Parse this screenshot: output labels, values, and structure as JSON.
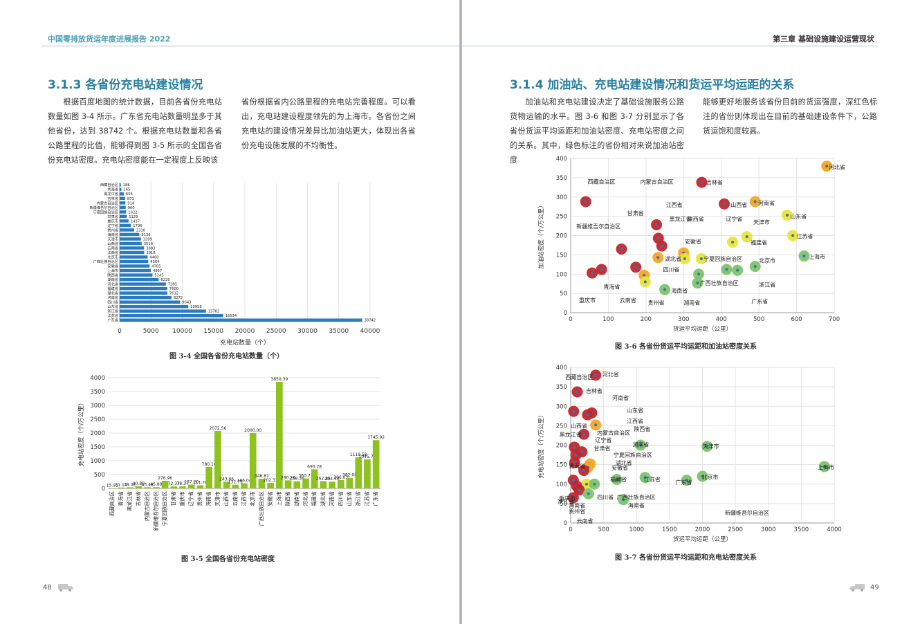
{
  "header": {
    "left_title": "中国零排放货运年度进展报告 2022",
    "right_title": "第三章  基础设施建设运营现状"
  },
  "left": {
    "section_title": "3.1.3 各省份充电站建设情况",
    "para1": "根据百度地图的统计数据，目前各省份充电站数量如图 3-4 所示。广东省充电站数量明显多于其他省份，达到 38742 个。根据充电站数量和各省公路里程的比值，能够得到图 3-5 所示的全国各省份充电站密度。充电站密度能在一定程度上反映该",
    "para2": "省份根据省内公路里程的充电站完善程度。可以看出，充电站建设程度领先的为上海市。各省份之间充电站的建设情况差异比加油站更大，体现出各省份充电设施发展的不均衡性。",
    "fig34_caption": "图 3-4 全国各省份充电站数量（个）",
    "fig35_caption": "图 3-5 全国各省份充电站密度",
    "page_number": "48"
  },
  "right": {
    "section_title": "3.1.4 加油站、充电站建设情况和货运平均运距的关系",
    "para1": "加油站和充电站建设决定了基础设施服务公路货物运输的水平。图 3-6 和图 3-7 分别显示了各省份货运平均运距和加油站密度、充电站密度之间的关系。其中，绿色标注的省份相对来说加油站密度",
    "para2": "能够更好地服务该省份目前的货运强度，深红色标注的省份则体现出在目前的基础建设条件下，公路货运饱和度较高。",
    "fig36_caption": "图 3-6 各省份货运平均运距和加油站密度关系",
    "fig37_caption": "图 3-7 各省份货运平均运距和充电站密度关系",
    "page_number": "49"
  },
  "colors": {
    "bar_blue": "#2a7bbf",
    "bar_green": "#8dc21f",
    "dot_red": "#c1272d",
    "dot_orange": "#f5a623",
    "dot_yellow": "#e8e43a",
    "dot_green": "#7cc36b",
    "header_teal": "#4aa0b6",
    "title_blue": "#2a7fa0"
  },
  "icons": {
    "footer_left": "truck-icon",
    "footer_right": "truck-icon"
  },
  "chart_data": [
    {
      "id": "fig3-4",
      "type": "bar",
      "orientation": "horizontal",
      "xlabel": "充电站数量（个）",
      "xlim": [
        0,
        40000
      ],
      "xticks": [
        "0",
        "5000",
        "10000",
        "15000",
        "20000",
        "25000",
        "30000",
        "35000",
        "40000"
      ],
      "grid": true,
      "categories": [
        "西藏自治区",
        "青海省",
        "黑龙江省",
        "吉林省",
        "内蒙古自治区",
        "新疆维吾尔自治区",
        "宁夏回族自治区",
        "甘肃省",
        "重庆市",
        "辽宁省",
        "贵州省",
        "海南省",
        "天津市",
        "山西省",
        "云南省",
        "江西省",
        "北京市",
        "广西壮族自治区",
        "安徽省",
        "上海市",
        "陕西省",
        "湖南省",
        "河北省",
        "福建省",
        "湖北省",
        "河南省",
        "四川省",
        "山东省",
        "浙江省",
        "江苏省",
        "广东省"
      ],
      "values": [
        188,
        265,
        656,
        871,
        914,
        960,
        1022,
        1129,
        1417,
        1796,
        2310,
        3136,
        3399,
        3516,
        3883,
        3918,
        4460,
        4564,
        4785,
        4967,
        5245,
        6229,
        7385,
        7600,
        7612,
        8272,
        9643,
        10958,
        13782,
        16534,
        38742
      ]
    },
    {
      "id": "fig3-5",
      "type": "bar",
      "ylabel": "充电站密度（个/万公里）",
      "ylim": [
        0,
        4000
      ],
      "yticks": [
        "0",
        "500",
        "1000",
        "1500",
        "2000",
        "2500",
        "3000",
        "3500",
        "4000"
      ],
      "grid": true,
      "categories": [
        "西藏自治区",
        "青海省",
        "黑龙江省",
        "吉林省",
        "内蒙古自治区",
        "新疆维吾尔自治区",
        "宁夏回族自治区",
        "甘肃省",
        "重庆市",
        "辽宁省",
        "贵州省",
        "海南省",
        "天津市",
        "山西省",
        "云南省",
        "江西省",
        "北京市",
        "广西壮族自治区",
        "安徽省",
        "上海市",
        "陕西省",
        "湖南省",
        "河北省",
        "福建省",
        "湖北省",
        "河南省",
        "四川省",
        "山东省",
        "浙江省",
        "江苏省",
        "广东省"
      ],
      "values": [
        15.91,
        31.14,
        39.02,
        80.8,
        43.48,
        45.89,
        276.96,
        72.37,
        78.37,
        137.2,
        111.76,
        780.1,
        2072.56,
        243.66,
        132.75,
        186.04,
        2000.0,
        346.81,
        202.33,
        3850.39,
        290.26,
        258.36,
        360.77,
        690.28,
        262.85,
        244.5,
        306.03,
        382.08,
        1119.58,
        1045.79,
        1745.92
      ],
      "labels": [
        "15.91",
        "31.14",
        "39.02",
        "80.80",
        "43.48",
        "45.89",
        "276.96",
        "72.37",
        "78.37",
        "137.20",
        "111.76",
        "780.10",
        "2072.56",
        "243.66",
        "132.75",
        "186.04",
        "2000.00",
        "346.81",
        "202.33",
        "3850.39",
        "290.26",
        "258.36",
        "360.77",
        "690.28",
        "262.85",
        "244.50",
        "306.03",
        "382.08",
        "1119.58",
        "1045.79",
        "1745.92"
      ]
    },
    {
      "id": "fig3-6",
      "type": "scatter",
      "xlabel": "货运平均运距（公里）",
      "ylabel": "加油站密度（个/万公里）",
      "xlim": [
        0,
        700
      ],
      "ylim": [
        0,
        400
      ],
      "xticks": [
        "0",
        "100",
        "200",
        "300",
        "400",
        "500",
        "600",
        "700"
      ],
      "yticks": [
        "0",
        "50",
        "100",
        "150",
        "200",
        "250",
        "300",
        "350",
        "400"
      ],
      "grid": true,
      "points": [
        {
          "x": 40,
          "y": 288,
          "color": "red"
        },
        {
          "x": 348,
          "y": 338,
          "color": "red"
        },
        {
          "x": 680,
          "y": 380,
          "color": "orange"
        },
        {
          "x": 408,
          "y": 282,
          "color": "red"
        },
        {
          "x": 490,
          "y": 288,
          "color": "orange"
        },
        {
          "x": 575,
          "y": 253,
          "color": "yellow"
        },
        {
          "x": 228,
          "y": 228,
          "color": "red"
        },
        {
          "x": 233,
          "y": 193,
          "color": "red"
        },
        {
          "x": 242,
          "y": 173,
          "color": "red"
        },
        {
          "x": 135,
          "y": 165,
          "color": "red"
        },
        {
          "x": 468,
          "y": 197,
          "color": "yellow"
        },
        {
          "x": 430,
          "y": 183,
          "color": "yellow"
        },
        {
          "x": 590,
          "y": 200,
          "color": "yellow"
        },
        {
          "x": 300,
          "y": 155,
          "color": "orange"
        },
        {
          "x": 232,
          "y": 143,
          "color": "orange"
        },
        {
          "x": 303,
          "y": 140,
          "color": "yellow"
        },
        {
          "x": 347,
          "y": 140,
          "color": "yellow"
        },
        {
          "x": 620,
          "y": 147,
          "color": "green"
        },
        {
          "x": 490,
          "y": 120,
          "color": "green"
        },
        {
          "x": 173,
          "y": 118,
          "color": "red"
        },
        {
          "x": 82,
          "y": 112,
          "color": "red"
        },
        {
          "x": 57,
          "y": 103,
          "color": "red"
        },
        {
          "x": 195,
          "y": 97,
          "color": "orange"
        },
        {
          "x": 414,
          "y": 112,
          "color": "green"
        },
        {
          "x": 443,
          "y": 110,
          "color": "green"
        },
        {
          "x": 340,
          "y": 100,
          "color": "green"
        },
        {
          "x": 198,
          "y": 80,
          "color": "yellow"
        },
        {
          "x": 337,
          "y": 77,
          "color": "green"
        },
        {
          "x": 250,
          "y": 60,
          "color": "green"
        }
      ],
      "labels": [
        {
          "text": "西藏自治区",
          "x": 45,
          "y": 340
        },
        {
          "text": "内蒙古自治区",
          "x": 185,
          "y": 340
        },
        {
          "text": "吉林省",
          "x": 360,
          "y": 338
        },
        {
          "text": "河北省",
          "x": 685,
          "y": 378
        },
        {
          "text": "山西省",
          "x": 425,
          "y": 280
        },
        {
          "text": "河南省",
          "x": 498,
          "y": 284
        },
        {
          "text": "山东省",
          "x": 583,
          "y": 250
        },
        {
          "text": "江西省",
          "x": 253,
          "y": 280
        },
        {
          "text": "甘肃省",
          "x": 150,
          "y": 258
        },
        {
          "text": "黑龙江省",
          "x": 262,
          "y": 243
        },
        {
          "text": "陕西省",
          "x": 310,
          "y": 243
        },
        {
          "text": "辽宁省",
          "x": 412,
          "y": 243
        },
        {
          "text": "天津市",
          "x": 485,
          "y": 235
        },
        {
          "text": "新疆维吾尔自治区",
          "x": 15,
          "y": 224
        },
        {
          "text": "江苏省",
          "x": 600,
          "y": 198
        },
        {
          "text": "安徽省",
          "x": 303,
          "y": 185
        },
        {
          "text": "福建省",
          "x": 478,
          "y": 182
        },
        {
          "text": "湖北省",
          "x": 250,
          "y": 140
        },
        {
          "text": "宁夏回族自治区",
          "x": 353,
          "y": 140
        },
        {
          "text": "北京市",
          "x": 500,
          "y": 135
        },
        {
          "text": "上海市",
          "x": 632,
          "y": 145
        },
        {
          "text": "四川省",
          "x": 245,
          "y": 112
        },
        {
          "text": "青海省",
          "x": 87,
          "y": 67
        },
        {
          "text": "海南省",
          "x": 267,
          "y": 57
        },
        {
          "text": "广西壮族自治区",
          "x": 343,
          "y": 77
        },
        {
          "text": "浙江省",
          "x": 500,
          "y": 73
        },
        {
          "text": "重庆市",
          "x": 22,
          "y": 32
        },
        {
          "text": "云南省",
          "x": 130,
          "y": 32
        },
        {
          "text": "贵州省",
          "x": 205,
          "y": 26
        },
        {
          "text": "湖南省",
          "x": 300,
          "y": 26
        },
        {
          "text": "广东省",
          "x": 480,
          "y": 30
        }
      ]
    },
    {
      "id": "fig3-7",
      "type": "scatter",
      "xlabel": "货运平均运距（公里）",
      "ylabel": "充电站密度（个/万公里）",
      "xlim": [
        0,
        4000
      ],
      "ylim": [
        0,
        400
      ],
      "xticks": [
        "0",
        "500",
        "1000",
        "1500",
        "2000",
        "2500",
        "3000",
        "3500",
        "4000"
      ],
      "yticks": [
        "0",
        "50",
        "100",
        "150",
        "200",
        "250",
        "300",
        "350",
        "400"
      ],
      "grid": true,
      "points": [
        {
          "x": 380,
          "y": 380,
          "color": "red"
        },
        {
          "x": 100,
          "y": 337,
          "color": "red"
        },
        {
          "x": 320,
          "y": 283,
          "color": "red"
        },
        {
          "x": 45,
          "y": 287,
          "color": "red"
        },
        {
          "x": 255,
          "y": 278,
          "color": "red"
        },
        {
          "x": 380,
          "y": 252,
          "color": "orange"
        },
        {
          "x": 200,
          "y": 228,
          "color": "red"
        },
        {
          "x": 55,
          "y": 195,
          "color": "red"
        },
        {
          "x": 80,
          "y": 175,
          "color": "red"
        },
        {
          "x": 170,
          "y": 183,
          "color": "red"
        },
        {
          "x": 60,
          "y": 155,
          "color": "red"
        },
        {
          "x": 295,
          "y": 152,
          "color": "orange"
        },
        {
          "x": 260,
          "y": 143,
          "color": "orange"
        },
        {
          "x": 200,
          "y": 135,
          "color": "red"
        },
        {
          "x": 1060,
          "y": 200,
          "color": "green"
        },
        {
          "x": 2070,
          "y": 197,
          "color": "green"
        },
        {
          "x": 3850,
          "y": 145,
          "color": "green"
        },
        {
          "x": 2000,
          "y": 120,
          "color": "green"
        },
        {
          "x": 700,
          "y": 112,
          "color": "green"
        },
        {
          "x": 1130,
          "y": 117,
          "color": "green"
        },
        {
          "x": 1760,
          "y": 110,
          "color": "green"
        },
        {
          "x": 40,
          "y": 110,
          "color": "red"
        },
        {
          "x": 240,
          "y": 100,
          "color": "yellow"
        },
        {
          "x": 360,
          "y": 100,
          "color": "green"
        },
        {
          "x": 90,
          "y": 95,
          "color": "red"
        },
        {
          "x": 130,
          "y": 85,
          "color": "red"
        },
        {
          "x": 270,
          "y": 75,
          "color": "green"
        },
        {
          "x": 800,
          "y": 60,
          "color": "green"
        },
        {
          "x": 40,
          "y": 65,
          "color": "red"
        }
      ],
      "labels": [
        {
          "text": "西藏自治区",
          "x": -80,
          "y": 375
        },
        {
          "text": "河北省",
          "x": 480,
          "y": 382
        },
        {
          "text": "吉林省",
          "x": 230,
          "y": 340
        },
        {
          "text": "河南省",
          "x": 630,
          "y": 322
        },
        {
          "text": "山东省",
          "x": 850,
          "y": 290
        },
        {
          "text": "江西省",
          "x": 850,
          "y": 262
        },
        {
          "text": "山西省",
          "x": 0,
          "y": 250
        },
        {
          "text": "陕西省",
          "x": 960,
          "y": 242
        },
        {
          "text": "内蒙古自治区",
          "x": 400,
          "y": 232
        },
        {
          "text": "黑龙江省",
          "x": -170,
          "y": 228
        },
        {
          "text": "辽宁省",
          "x": 370,
          "y": 213
        },
        {
          "text": "湖南省",
          "x": 940,
          "y": 202
        },
        {
          "text": "天津市",
          "x": 2000,
          "y": 197
        },
        {
          "text": "甘肃省",
          "x": 350,
          "y": 192
        },
        {
          "text": "宁夏回族自治区",
          "x": 650,
          "y": 175
        },
        {
          "text": "湖北省",
          "x": 680,
          "y": 155
        },
        {
          "text": "青海省",
          "x": -30,
          "y": 147
        },
        {
          "text": "安徽省",
          "x": 620,
          "y": 142
        },
        {
          "text": "福建省",
          "x": 600,
          "y": 112
        },
        {
          "text": "江苏省",
          "x": 1110,
          "y": 112
        },
        {
          "text": "广东省",
          "x": 1590,
          "y": 105
        },
        {
          "text": "北京市",
          "x": 1990,
          "y": 118
        },
        {
          "text": "上海市",
          "x": 3750,
          "y": 143
        },
        {
          "text": "四川省",
          "x": 400,
          "y": 67
        },
        {
          "text": "广西壮族自治区",
          "x": 700,
          "y": 67
        },
        {
          "text": "重庆市",
          "x": -180,
          "y": 63
        },
        {
          "text": "浙江省",
          "x": -200,
          "y": 55
        },
        {
          "text": "海南省",
          "x": -30,
          "y": 45
        },
        {
          "text": "海南省",
          "x": 870,
          "y": 45
        },
        {
          "text": "贵州省",
          "x": -30,
          "y": 30
        },
        {
          "text": "新疆维吾尔自治区",
          "x": 2340,
          "y": 27
        },
        {
          "text": "云南省",
          "x": 90,
          "y": 5
        }
      ]
    }
  ]
}
